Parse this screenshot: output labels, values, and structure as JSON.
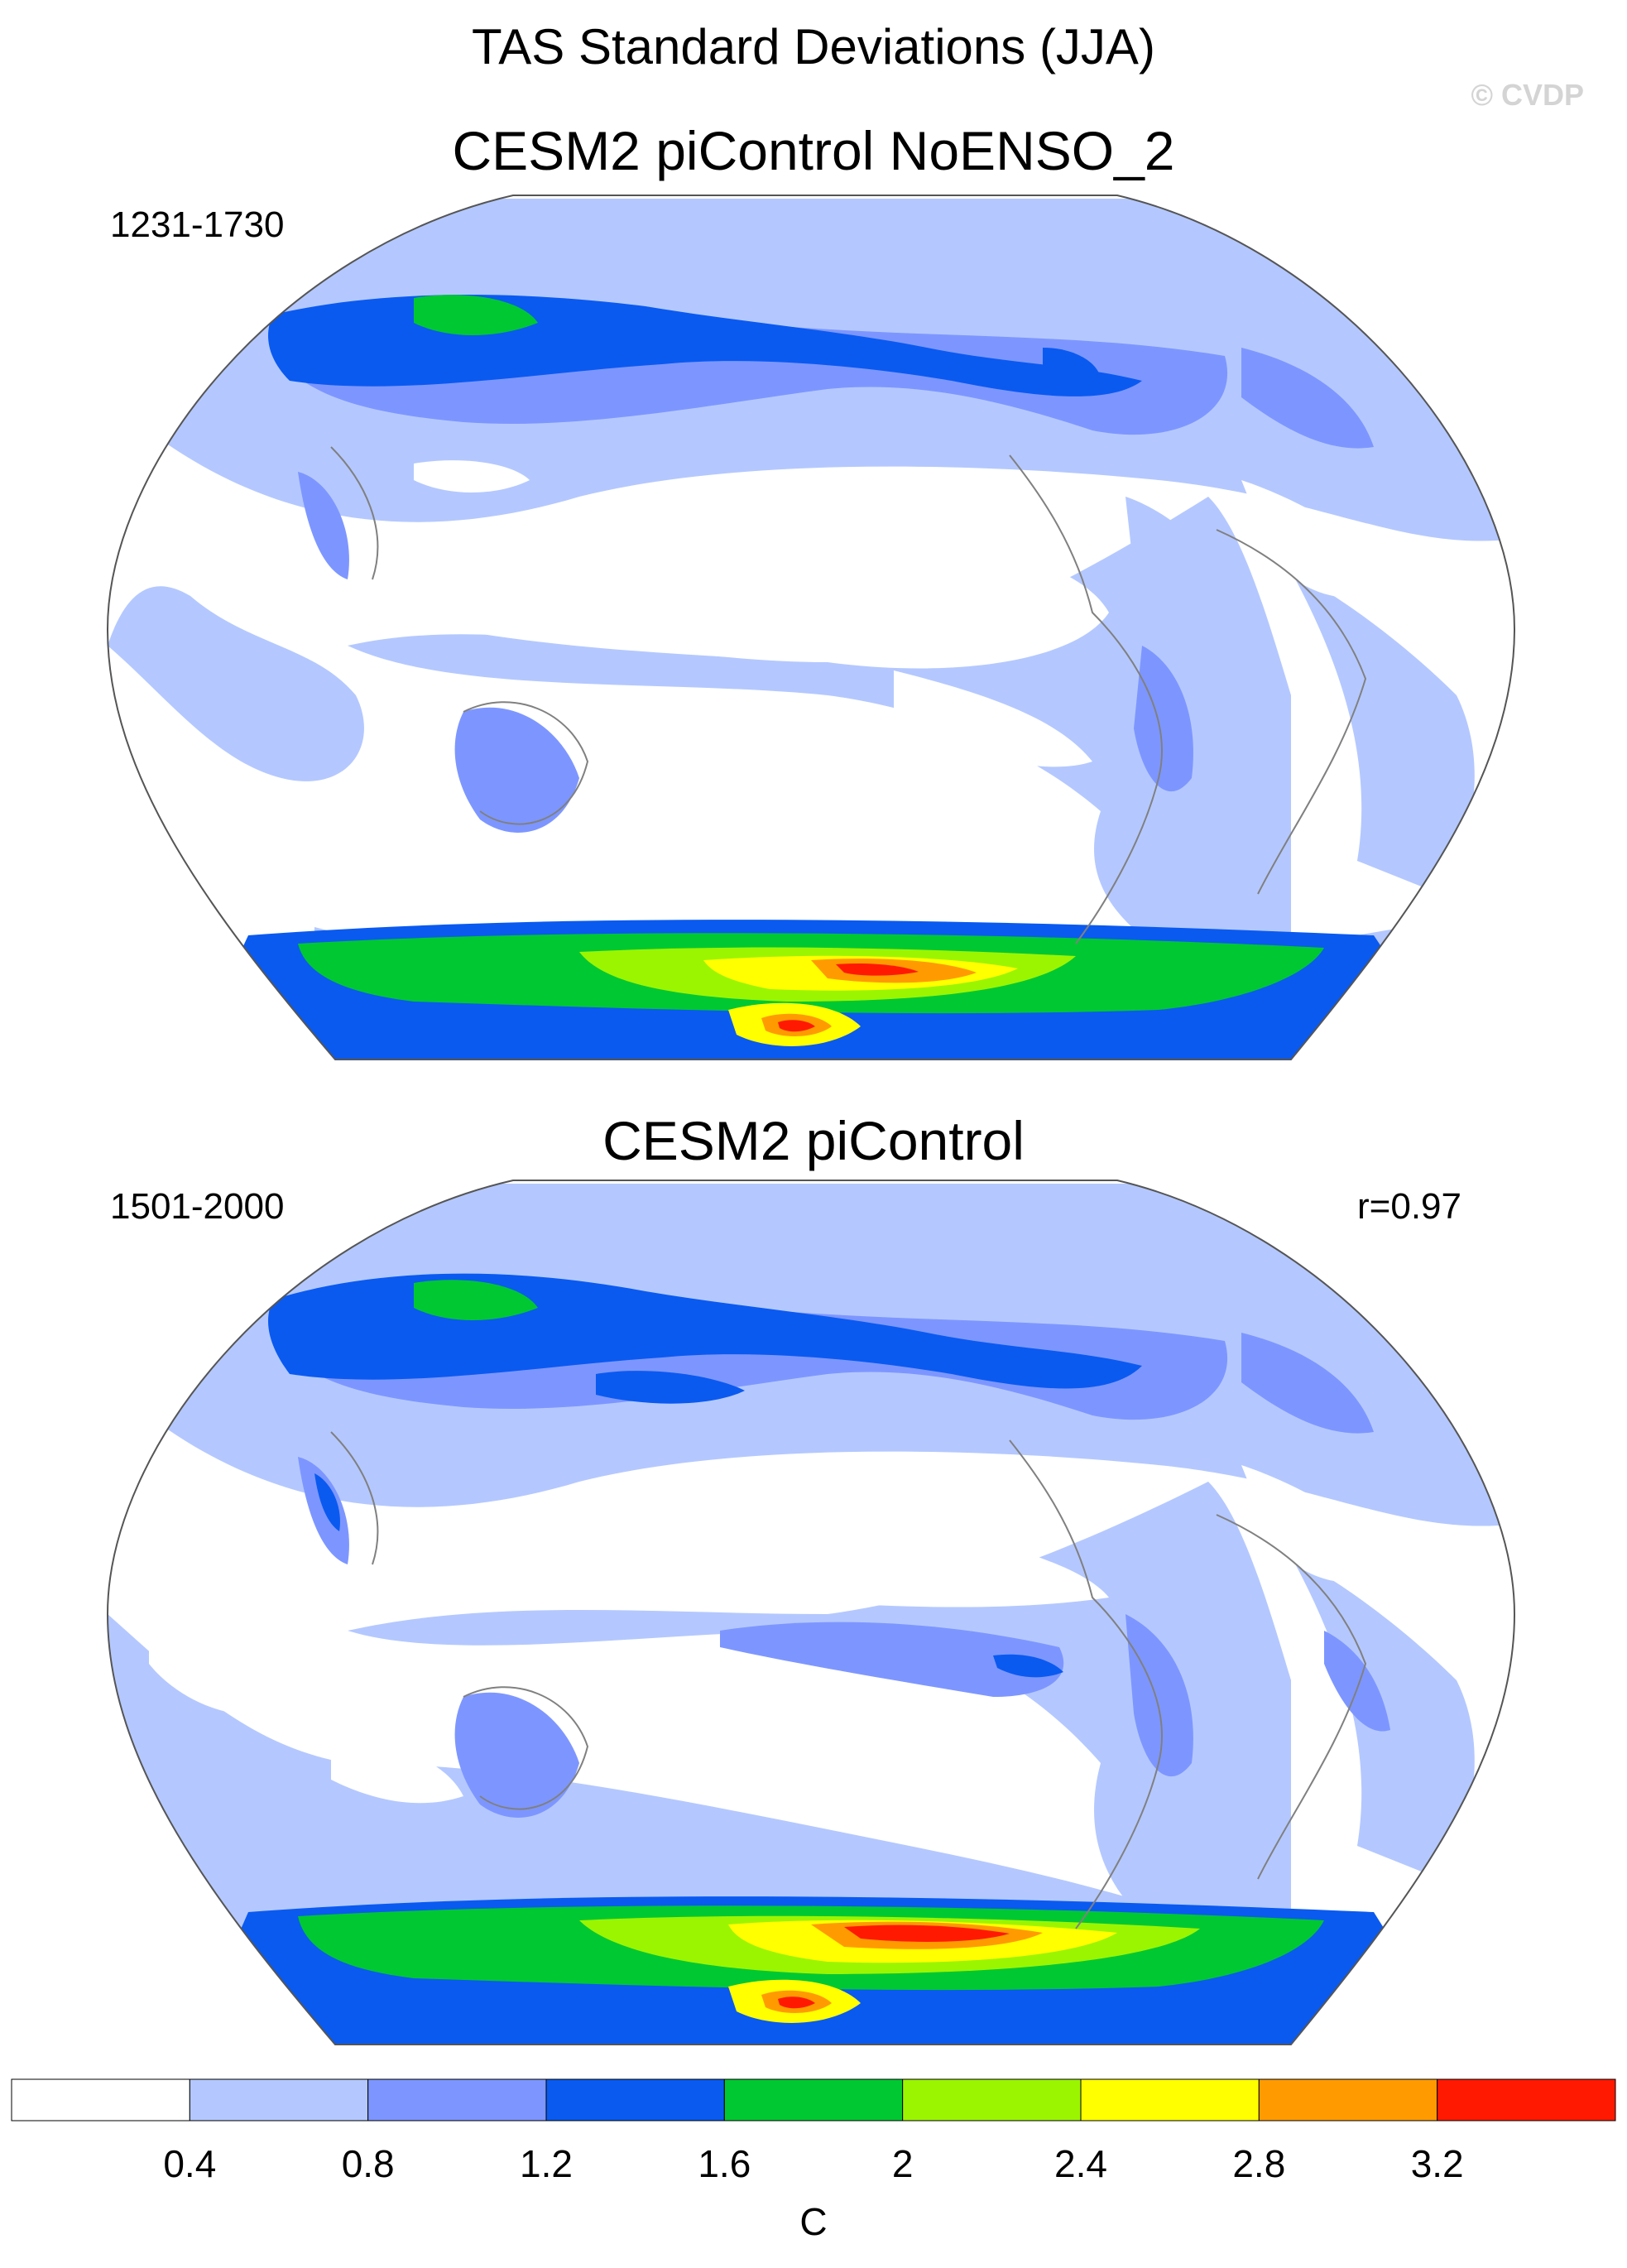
{
  "figure": {
    "title": "TAS Standard Deviations (JJA)",
    "copyright": "© CVDP"
  },
  "panels": [
    {
      "title": "CESM2 piControl NoENSO_2",
      "period": "1231-1730",
      "correlation": ""
    },
    {
      "title": "CESM2 piControl",
      "period": "1501-2000",
      "correlation": "r=0.97"
    }
  ],
  "colorbar": {
    "unit": "C",
    "tick_labels": [
      "0.4",
      "0.8",
      "1.2",
      "1.6",
      "2",
      "2.4",
      "2.8",
      "3.2"
    ],
    "colors": [
      "#ffffff",
      "#b4c8ff",
      "#7d96ff",
      "#0a5af0",
      "#00c832",
      "#9bf500",
      "#ffff00",
      "#ff9b00",
      "#ff1900"
    ]
  }
}
